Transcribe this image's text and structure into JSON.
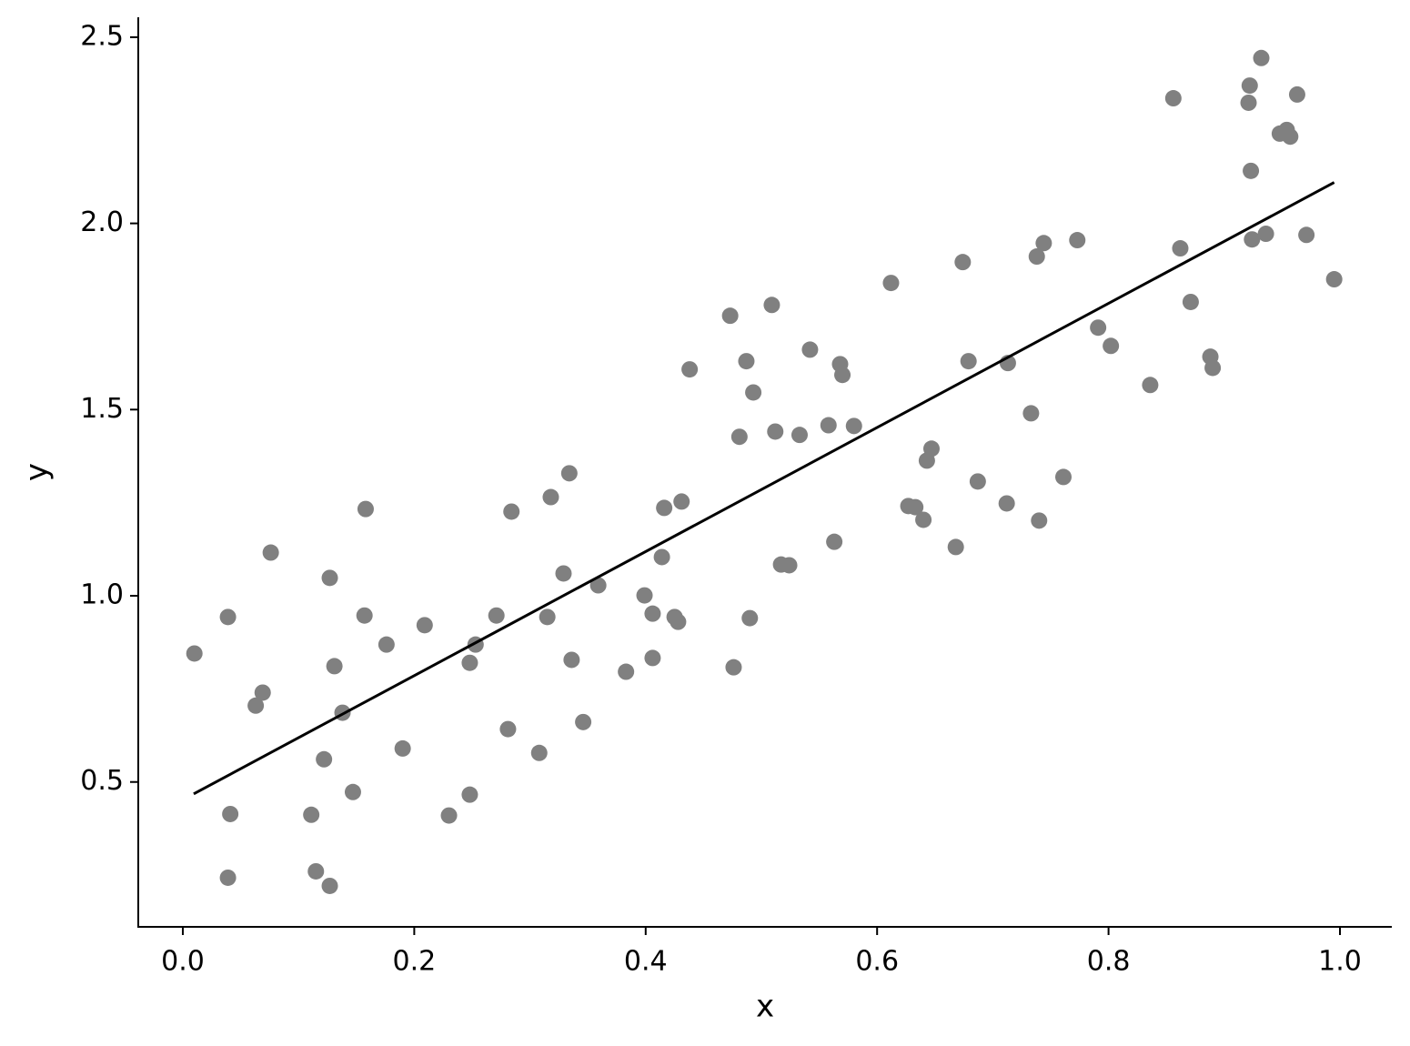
{
  "chart_data": {
    "type": "scatter",
    "xlabel": "x",
    "ylabel": "y",
    "xlim": [
      -0.0385,
      1.0448
    ],
    "ylim": [
      0.111,
      2.551
    ],
    "xticks": [
      {
        "value": 0,
        "label": "0.0"
      },
      0.2,
      0.4,
      0.6,
      0.8,
      {
        "value": 1,
        "label": "1.0"
      }
    ],
    "yticks": [
      0.5,
      {
        "value": 1,
        "label": "1.0"
      },
      1.5,
      {
        "value": 2,
        "label": "2.0"
      },
      2.5
    ],
    "series": [
      {
        "type": "scatter",
        "color": "#808080",
        "x": [
          0.01,
          0.039,
          0.041,
          0.039,
          0.063,
          0.069,
          0.076,
          0.111,
          0.115,
          0.122,
          0.127,
          0.127,
          0.131,
          0.138,
          0.147,
          0.157,
          0.158,
          0.176,
          0.19,
          0.209,
          0.23,
          0.248,
          0.248,
          0.253,
          0.271,
          0.281,
          0.284,
          0.308,
          0.315,
          0.318,
          0.329,
          0.334,
          0.336,
          0.346,
          0.359,
          0.383,
          0.399,
          0.406,
          0.406,
          0.414,
          0.416,
          0.425,
          0.428,
          0.431,
          0.438,
          0.473,
          0.476,
          0.481,
          0.487,
          0.49,
          0.493,
          0.509,
          0.512,
          0.517,
          0.524,
          0.533,
          0.542,
          0.558,
          0.563,
          0.568,
          0.57,
          0.58,
          0.612,
          0.627,
          0.633,
          0.64,
          0.643,
          0.647,
          0.668,
          0.674,
          0.679,
          0.687,
          0.712,
          0.713,
          0.733,
          0.738,
          0.74,
          0.744,
          0.761,
          0.773,
          0.791,
          0.802,
          0.836,
          0.856,
          0.862,
          0.871,
          0.888,
          0.89,
          0.921,
          0.922,
          0.923,
          0.924,
          0.932,
          0.936,
          0.948,
          0.954,
          0.957,
          0.963,
          0.971,
          0.995
        ],
        "values": [
          0.845,
          0.943,
          0.414,
          0.243,
          0.705,
          0.74,
          1.116,
          0.412,
          0.26,
          0.561,
          1.048,
          0.221,
          0.811,
          0.686,
          0.473,
          0.947,
          1.233,
          0.869,
          0.59,
          0.921,
          0.41,
          0.466,
          0.82,
          0.869,
          0.947,
          0.642,
          1.226,
          0.578,
          0.943,
          1.265,
          1.06,
          1.329,
          0.828,
          0.661,
          1.028,
          0.796,
          1.001,
          0.952,
          0.833,
          1.104,
          1.236,
          0.943,
          0.93,
          1.253,
          1.608,
          1.752,
          0.808,
          1.427,
          1.63,
          0.94,
          1.546,
          1.781,
          1.441,
          1.084,
          1.082,
          1.432,
          1.661,
          1.458,
          1.145,
          1.622,
          1.593,
          1.456,
          1.84,
          1.241,
          1.238,
          1.204,
          1.363,
          1.395,
          1.131,
          1.896,
          1.63,
          1.307,
          1.248,
          1.625,
          1.49,
          1.911,
          1.202,
          1.947,
          1.319,
          1.955,
          1.72,
          1.671,
          1.566,
          2.336,
          1.933,
          1.789,
          1.642,
          1.612,
          2.324,
          2.37,
          2.141,
          1.957,
          2.444,
          1.972,
          2.241,
          2.251,
          2.233,
          2.346,
          1.969,
          1.85
        ]
      },
      {
        "type": "line",
        "color": "#000000",
        "x": [
          0.0094,
          0.995
        ],
        "values": [
          0.468,
          2.11
        ]
      }
    ]
  }
}
